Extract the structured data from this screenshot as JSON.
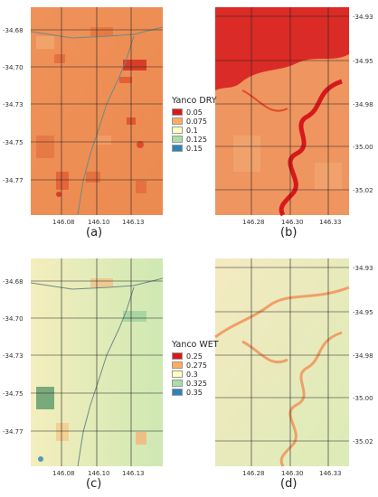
{
  "panels": [
    {
      "id": "a",
      "caption": "(a)",
      "yticks": [
        "-34.68",
        "-34.70",
        "-34.73",
        "-34.75",
        "-34.77"
      ],
      "yside": "left",
      "xticks": [
        "146.08",
        "146.10",
        "146.13"
      ],
      "bg": "#ef8f55"
    },
    {
      "id": "b",
      "caption": "(b)",
      "yticks": [
        "-34.93",
        "-34.95",
        "-34.98",
        "-35.00",
        "-35.02"
      ],
      "yside": "right",
      "xticks": [
        "146.28",
        "146.30",
        "146.33"
      ],
      "bg": "#ee8a52"
    },
    {
      "id": "c",
      "caption": "(c)",
      "yticks": [
        "-34.68",
        "-34.70",
        "-34.73",
        "-34.75",
        "-34.77"
      ],
      "yside": "left",
      "xticks": [
        "146.08",
        "146.10",
        "146.13"
      ],
      "bg": "#f3efbf"
    },
    {
      "id": "d",
      "caption": "(d)",
      "yticks": [
        "-34.93",
        "-34.95",
        "-34.98",
        "-35.00",
        "-35.02"
      ],
      "yside": "right",
      "xticks": [
        "146.28",
        "146.30",
        "146.33"
      ],
      "bg": "#eef0c2"
    }
  ],
  "legend_dry": {
    "title": "Yanco DRY",
    "items": [
      {
        "label": "0.05",
        "color": "#d7191c"
      },
      {
        "label": "0.075",
        "color": "#fdae61"
      },
      {
        "label": "0.1",
        "color": "#ffffbf"
      },
      {
        "label": "0.125",
        "color": "#abdda4"
      },
      {
        "label": "0.15",
        "color": "#2b83ba"
      }
    ]
  },
  "legend_wet": {
    "title": "Yanco WET",
    "items": [
      {
        "label": "0.25",
        "color": "#d7191c"
      },
      {
        "label": "0.275",
        "color": "#fdae61"
      },
      {
        "label": "0.3",
        "color": "#ffffbf"
      },
      {
        "label": "0.325",
        "color": "#abdda4"
      },
      {
        "label": "0.35",
        "color": "#2b83ba"
      }
    ]
  }
}
